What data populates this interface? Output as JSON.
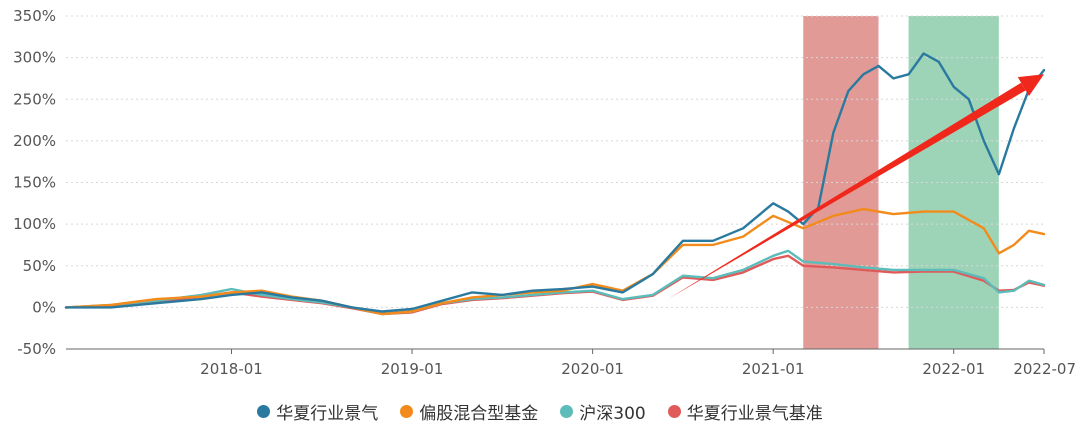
{
  "chart_data": {
    "type": "line",
    "x_range": [
      "2017-02",
      "2022-07"
    ],
    "ylim": [
      -50,
      350
    ],
    "y_ticks": [
      -50,
      0,
      50,
      100,
      150,
      200,
      250,
      300,
      350
    ],
    "y_tick_labels": [
      "-50%",
      "0%",
      "50%",
      "100%",
      "150%",
      "200%",
      "250%",
      "300%",
      "350%"
    ],
    "x_ticks": [
      "2018-01",
      "2019-01",
      "2020-01",
      "2021-01",
      "2022-01",
      "2022-07"
    ],
    "x_tick_labels": [
      "2018-01",
      "2019-01",
      "2020-01",
      "2021-01",
      "2022-01",
      "2022-07"
    ],
    "grid": "horizontal dotted",
    "legend_position": "bottom",
    "series": [
      {
        "name": "华夏行业景气",
        "color": "#2a7aa0",
        "points": [
          [
            "2017-02",
            0
          ],
          [
            "2017-05",
            0
          ],
          [
            "2017-08",
            5
          ],
          [
            "2017-11",
            10
          ],
          [
            "2018-01",
            15
          ],
          [
            "2018-03",
            18
          ],
          [
            "2018-05",
            12
          ],
          [
            "2018-07",
            8
          ],
          [
            "2018-09",
            0
          ],
          [
            "2018-11",
            -5
          ],
          [
            "2019-01",
            -2
          ],
          [
            "2019-03",
            8
          ],
          [
            "2019-05",
            18
          ],
          [
            "2019-07",
            15
          ],
          [
            "2019-09",
            20
          ],
          [
            "2019-11",
            22
          ],
          [
            "2020-01",
            25
          ],
          [
            "2020-03",
            18
          ],
          [
            "2020-05",
            40
          ],
          [
            "2020-07",
            80
          ],
          [
            "2020-09",
            80
          ],
          [
            "2020-11",
            95
          ],
          [
            "2021-01",
            125
          ],
          [
            "2021-02",
            115
          ],
          [
            "2021-03",
            100
          ],
          [
            "2021-04",
            120
          ],
          [
            "2021-05",
            210
          ],
          [
            "2021-06",
            260
          ],
          [
            "2021-07",
            280
          ],
          [
            "2021-08",
            290
          ],
          [
            "2021-09",
            275
          ],
          [
            "2021-10",
            280
          ],
          [
            "2021-11",
            305
          ],
          [
            "2021-12",
            295
          ],
          [
            "2022-01",
            265
          ],
          [
            "2022-02",
            250
          ],
          [
            "2022-03",
            200
          ],
          [
            "2022-04",
            160
          ],
          [
            "2022-05",
            215
          ],
          [
            "2022-06",
            262
          ],
          [
            "2022-07",
            285
          ]
        ]
      },
      {
        "name": "偏股混合型基金",
        "color": "#f28b1b",
        "points": [
          [
            "2017-02",
            0
          ],
          [
            "2017-05",
            3
          ],
          [
            "2017-08",
            10
          ],
          [
            "2017-11",
            13
          ],
          [
            "2018-01",
            18
          ],
          [
            "2018-03",
            20
          ],
          [
            "2018-05",
            13
          ],
          [
            "2018-07",
            8
          ],
          [
            "2018-09",
            0
          ],
          [
            "2018-11",
            -8
          ],
          [
            "2019-01",
            -5
          ],
          [
            "2019-03",
            5
          ],
          [
            "2019-05",
            12
          ],
          [
            "2019-07",
            15
          ],
          [
            "2019-09",
            18
          ],
          [
            "2019-11",
            20
          ],
          [
            "2020-01",
            28
          ],
          [
            "2020-03",
            20
          ],
          [
            "2020-05",
            40
          ],
          [
            "2020-07",
            75
          ],
          [
            "2020-09",
            75
          ],
          [
            "2020-11",
            85
          ],
          [
            "2021-01",
            110
          ],
          [
            "2021-03",
            95
          ],
          [
            "2021-05",
            110
          ],
          [
            "2021-07",
            118
          ],
          [
            "2021-09",
            112
          ],
          [
            "2021-11",
            115
          ],
          [
            "2022-01",
            115
          ],
          [
            "2022-03",
            95
          ],
          [
            "2022-04",
            65
          ],
          [
            "2022-05",
            75
          ],
          [
            "2022-06",
            92
          ],
          [
            "2022-07",
            88
          ]
        ]
      },
      {
        "name": "沪深300",
        "color": "#5cbcb9",
        "points": [
          [
            "2017-02",
            0
          ],
          [
            "2017-05",
            3
          ],
          [
            "2017-08",
            8
          ],
          [
            "2017-11",
            15
          ],
          [
            "2018-01",
            22
          ],
          [
            "2018-03",
            15
          ],
          [
            "2018-05",
            10
          ],
          [
            "2018-07",
            6
          ],
          [
            "2018-09",
            0
          ],
          [
            "2018-11",
            -8
          ],
          [
            "2019-01",
            -5
          ],
          [
            "2019-03",
            5
          ],
          [
            "2019-05",
            10
          ],
          [
            "2019-07",
            12
          ],
          [
            "2019-09",
            15
          ],
          [
            "2019-11",
            18
          ],
          [
            "2020-01",
            20
          ],
          [
            "2020-03",
            10
          ],
          [
            "2020-05",
            15
          ],
          [
            "2020-07",
            38
          ],
          [
            "2020-09",
            35
          ],
          [
            "2020-11",
            45
          ],
          [
            "2021-01",
            62
          ],
          [
            "2021-02",
            68
          ],
          [
            "2021-03",
            55
          ],
          [
            "2021-05",
            52
          ],
          [
            "2021-07",
            48
          ],
          [
            "2021-09",
            45
          ],
          [
            "2021-11",
            45
          ],
          [
            "2022-01",
            45
          ],
          [
            "2022-03",
            35
          ],
          [
            "2022-04",
            18
          ],
          [
            "2022-05",
            20
          ],
          [
            "2022-06",
            32
          ],
          [
            "2022-07",
            27
          ]
        ]
      },
      {
        "name": "华夏行业景气基准",
        "color": "#e05a5a",
        "points": [
          [
            "2017-02",
            0
          ],
          [
            "2017-05",
            2
          ],
          [
            "2017-08",
            7
          ],
          [
            "2017-11",
            13
          ],
          [
            "2018-01",
            18
          ],
          [
            "2018-03",
            13
          ],
          [
            "2018-05",
            9
          ],
          [
            "2018-07",
            5
          ],
          [
            "2018-09",
            -1
          ],
          [
            "2018-11",
            -8
          ],
          [
            "2019-01",
            -6
          ],
          [
            "2019-03",
            4
          ],
          [
            "2019-05",
            9
          ],
          [
            "2019-07",
            11
          ],
          [
            "2019-09",
            14
          ],
          [
            "2019-11",
            17
          ],
          [
            "2020-01",
            19
          ],
          [
            "2020-03",
            9
          ],
          [
            "2020-05",
            14
          ],
          [
            "2020-07",
            36
          ],
          [
            "2020-09",
            33
          ],
          [
            "2020-11",
            42
          ],
          [
            "2021-01",
            58
          ],
          [
            "2021-02",
            62
          ],
          [
            "2021-03",
            50
          ],
          [
            "2021-05",
            48
          ],
          [
            "2021-07",
            45
          ],
          [
            "2021-09",
            42
          ],
          [
            "2021-11",
            43
          ],
          [
            "2022-01",
            43
          ],
          [
            "2022-03",
            32
          ],
          [
            "2022-04",
            20
          ],
          [
            "2022-05",
            21
          ],
          [
            "2022-06",
            30
          ],
          [
            "2022-07",
            26
          ]
        ]
      }
    ],
    "shaded_regions": [
      {
        "start": "2021-03",
        "end": "2021-08",
        "color": "#e29a97"
      },
      {
        "start": "2021-10",
        "end": "2022-04",
        "color": "#9dd4b8"
      }
    ],
    "annotations": [
      {
        "type": "arrow",
        "color": "#f0281c",
        "from": [
          "2020-06",
          10
        ],
        "to": [
          "2022-07",
          280
        ]
      }
    ]
  }
}
